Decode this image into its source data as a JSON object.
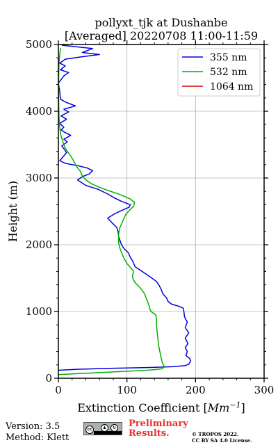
{
  "chart_data": {
    "type": "line",
    "title_line1": "pollyxt_tjk at Dushanbe",
    "title_line2": "[Averaged] 20220708 11:00-11:59",
    "xlabel_text": "Extinction Coefficient [",
    "xlabel_unit_base": "Mm",
    "xlabel_unit_exp": "−1",
    "xlabel_close": "]",
    "ylabel": "Height (m)",
    "xlim": [
      0,
      300
    ],
    "ylim": [
      0,
      5000
    ],
    "xticks": [
      0,
      100,
      200,
      300
    ],
    "yticks": [
      0,
      1000,
      2000,
      3000,
      4000,
      5000
    ],
    "grid": true,
    "legend_position": "top-right",
    "series": [
      {
        "name": "355 nm",
        "color": "#0000dd",
        "points": [
          [
            0,
            120
          ],
          [
            30,
            135
          ],
          [
            80,
            150
          ],
          [
            130,
            160
          ],
          [
            170,
            175
          ],
          [
            185,
            190
          ],
          [
            190,
            210
          ],
          [
            193,
            260
          ],
          [
            191,
            300
          ],
          [
            186,
            340
          ],
          [
            188,
            400
          ],
          [
            185,
            460
          ],
          [
            189,
            520
          ],
          [
            185,
            600
          ],
          [
            190,
            680
          ],
          [
            185,
            760
          ],
          [
            188,
            840
          ],
          [
            184,
            920
          ],
          [
            183,
            1000
          ],
          [
            182,
            1050
          ],
          [
            175,
            1080
          ],
          [
            165,
            1110
          ],
          [
            160,
            1150
          ],
          [
            158,
            1200
          ],
          [
            152,
            1270
          ],
          [
            150,
            1330
          ],
          [
            147,
            1390
          ],
          [
            143,
            1450
          ],
          [
            135,
            1510
          ],
          [
            125,
            1580
          ],
          [
            112,
            1670
          ],
          [
            108,
            1760
          ],
          [
            105,
            1810
          ],
          [
            102,
            1880
          ],
          [
            96,
            1940
          ],
          [
            92,
            2000
          ],
          [
            90,
            2060
          ],
          [
            88,
            2120
          ],
          [
            87,
            2200
          ],
          [
            85,
            2260
          ],
          [
            78,
            2330
          ],
          [
            72,
            2400
          ],
          [
            83,
            2470
          ],
          [
            96,
            2530
          ],
          [
            103,
            2560
          ],
          [
            105,
            2600
          ],
          [
            92,
            2650
          ],
          [
            82,
            2700
          ],
          [
            72,
            2760
          ],
          [
            58,
            2830
          ],
          [
            40,
            2890
          ],
          [
            28,
            2970
          ],
          [
            35,
            3020
          ],
          [
            45,
            3060
          ],
          [
            50,
            3110
          ],
          [
            42,
            3150
          ],
          [
            30,
            3180
          ],
          [
            10,
            3220
          ],
          [
            2,
            3260
          ],
          [
            7,
            3320
          ],
          [
            12,
            3380
          ],
          [
            8,
            3440
          ],
          [
            5,
            3480
          ],
          [
            13,
            3540
          ],
          [
            8,
            3580
          ],
          [
            18,
            3640
          ],
          [
            10,
            3680
          ],
          [
            4,
            3720
          ],
          [
            8,
            3760
          ],
          [
            2,
            3820
          ],
          [
            12,
            3880
          ],
          [
            4,
            3930
          ],
          [
            15,
            3990
          ],
          [
            8,
            4030
          ],
          [
            25,
            4080
          ],
          [
            12,
            4130
          ],
          [
            3,
            4180
          ],
          [
            2,
            4300
          ],
          [
            0,
            4420
          ],
          [
            8,
            4530
          ],
          [
            15,
            4580
          ],
          [
            3,
            4620
          ],
          [
            10,
            4680
          ],
          [
            2,
            4720
          ],
          [
            10,
            4780
          ],
          [
            30,
            4810
          ],
          [
            60,
            4850
          ],
          [
            35,
            4880
          ],
          [
            50,
            4940
          ],
          [
            5,
            4990
          ]
        ]
      },
      {
        "name": "532 nm",
        "color": "#00b000",
        "points": [
          [
            0,
            55
          ],
          [
            40,
            75
          ],
          [
            90,
            100
          ],
          [
            130,
            120
          ],
          [
            150,
            140
          ],
          [
            155,
            170
          ],
          [
            152,
            220
          ],
          [
            150,
            300
          ],
          [
            148,
            400
          ],
          [
            146,
            500
          ],
          [
            145,
            600
          ],
          [
            144,
            700
          ],
          [
            143,
            800
          ],
          [
            143,
            900
          ],
          [
            142,
            950
          ],
          [
            135,
            1000
          ],
          [
            133,
            1050
          ],
          [
            132,
            1100
          ],
          [
            130,
            1150
          ],
          [
            128,
            1200
          ],
          [
            126,
            1260
          ],
          [
            122,
            1320
          ],
          [
            118,
            1370
          ],
          [
            112,
            1430
          ],
          [
            109,
            1480
          ],
          [
            108,
            1540
          ],
          [
            110,
            1600
          ],
          [
            105,
            1660
          ],
          [
            100,
            1720
          ],
          [
            96,
            1790
          ],
          [
            93,
            1860
          ],
          [
            90,
            1940
          ],
          [
            88,
            2020
          ],
          [
            88,
            2100
          ],
          [
            88,
            2170
          ],
          [
            89,
            2240
          ],
          [
            92,
            2310
          ],
          [
            95,
            2380
          ],
          [
            98,
            2450
          ],
          [
            104,
            2520
          ],
          [
            110,
            2580
          ],
          [
            111,
            2640
          ],
          [
            104,
            2690
          ],
          [
            95,
            2730
          ],
          [
            85,
            2770
          ],
          [
            73,
            2810
          ],
          [
            60,
            2860
          ],
          [
            49,
            2910
          ],
          [
            40,
            2970
          ],
          [
            35,
            3030
          ],
          [
            32,
            3100
          ],
          [
            26,
            3180
          ],
          [
            22,
            3260
          ],
          [
            18,
            3330
          ],
          [
            13,
            3400
          ],
          [
            9,
            3470
          ],
          [
            6,
            3560
          ],
          [
            3,
            3660
          ],
          [
            2,
            3760
          ],
          [
            1,
            3900
          ],
          [
            0.5,
            4100
          ],
          [
            0.3,
            4400
          ],
          [
            0.8,
            4700
          ],
          [
            2,
            4850
          ],
          [
            3,
            4950
          ]
        ]
      },
      {
        "name": "1064 nm",
        "color": "#dd0000",
        "points": []
      }
    ]
  },
  "footer": {
    "version": "Version: 3.5",
    "method": "Method: Klett",
    "preliminary_line1": "Preliminary",
    "preliminary_line2": "Results.",
    "copyright_line1": "© TROPOS 2022.",
    "copyright_line2": "CC BY SA 4.0 License.",
    "cc_text": "cc",
    "cc_by": "BY",
    "cc_sa": "SA"
  }
}
